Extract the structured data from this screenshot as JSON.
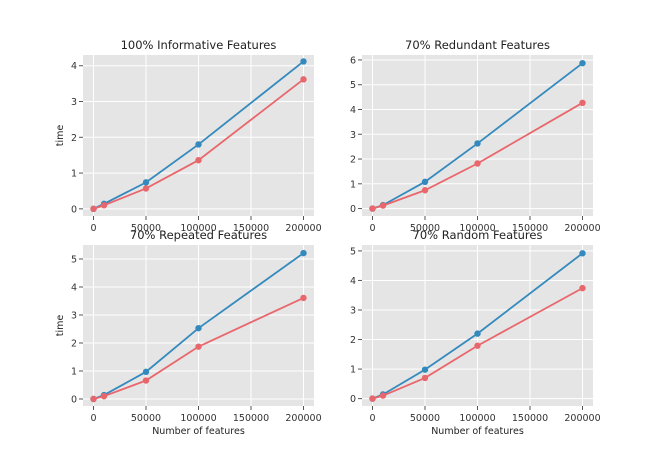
{
  "colors": {
    "background": "#e5e5e5",
    "grid": "#ffffff",
    "series_blue": "#348abd",
    "series_red": "#e8676c",
    "tick": "#555555"
  },
  "chart_data": [
    {
      "type": "line",
      "title": "100% Informative Features",
      "xlabel": "",
      "ylabel": "time",
      "xlim": [
        -10000,
        210000
      ],
      "ylim": [
        -0.2,
        4.3
      ],
      "xticks": [
        0,
        50000,
        100000,
        150000,
        200000
      ],
      "yticks": [
        0,
        1,
        2,
        3,
        4
      ],
      "grid": true,
      "x": [
        0,
        10000,
        50000,
        100000,
        200000
      ],
      "series": [
        {
          "color": "#348abd",
          "values": [
            0.0,
            0.14,
            0.74,
            1.8,
            4.12
          ]
        },
        {
          "color": "#e8676c",
          "values": [
            0.0,
            0.1,
            0.57,
            1.36,
            3.62
          ]
        }
      ]
    },
    {
      "type": "line",
      "title": "70% Redundant Features",
      "xlabel": "",
      "ylabel": "",
      "xlim": [
        -10000,
        210000
      ],
      "ylim": [
        -0.3,
        6.2
      ],
      "xticks": [
        0,
        50000,
        100000,
        150000,
        200000
      ],
      "yticks": [
        0,
        1,
        2,
        3,
        4,
        5,
        6
      ],
      "grid": true,
      "x": [
        0,
        10000,
        50000,
        100000,
        200000
      ],
      "series": [
        {
          "color": "#348abd",
          "values": [
            0.0,
            0.14,
            1.08,
            2.63,
            5.87
          ]
        },
        {
          "color": "#e8676c",
          "values": [
            0.0,
            0.12,
            0.74,
            1.82,
            4.27
          ]
        }
      ]
    },
    {
      "type": "line",
      "title": "70% Repeated Features",
      "xlabel": "Number of features",
      "ylabel": "time",
      "xlim": [
        -10000,
        210000
      ],
      "ylim": [
        -0.25,
        5.5
      ],
      "xticks": [
        0,
        50000,
        100000,
        150000,
        200000
      ],
      "yticks": [
        0,
        1,
        2,
        3,
        4,
        5
      ],
      "grid": true,
      "x": [
        0,
        10000,
        50000,
        100000,
        200000
      ],
      "series": [
        {
          "color": "#348abd",
          "values": [
            0.0,
            0.14,
            0.97,
            2.53,
            5.21
          ]
        },
        {
          "color": "#e8676c",
          "values": [
            0.0,
            0.1,
            0.66,
            1.87,
            3.61
          ]
        }
      ]
    },
    {
      "type": "line",
      "title": "70% Random Features",
      "xlabel": "Number of features",
      "ylabel": "",
      "xlim": [
        -10000,
        210000
      ],
      "ylim": [
        -0.25,
        5.2
      ],
      "xticks": [
        0,
        50000,
        100000,
        150000,
        200000
      ],
      "yticks": [
        0,
        1,
        2,
        3,
        4,
        5
      ],
      "grid": true,
      "x": [
        0,
        10000,
        50000,
        100000,
        200000
      ],
      "series": [
        {
          "color": "#348abd",
          "values": [
            0.0,
            0.14,
            0.98,
            2.2,
            4.92
          ]
        },
        {
          "color": "#e8676c",
          "values": [
            0.0,
            0.1,
            0.7,
            1.79,
            3.74
          ]
        }
      ]
    }
  ]
}
